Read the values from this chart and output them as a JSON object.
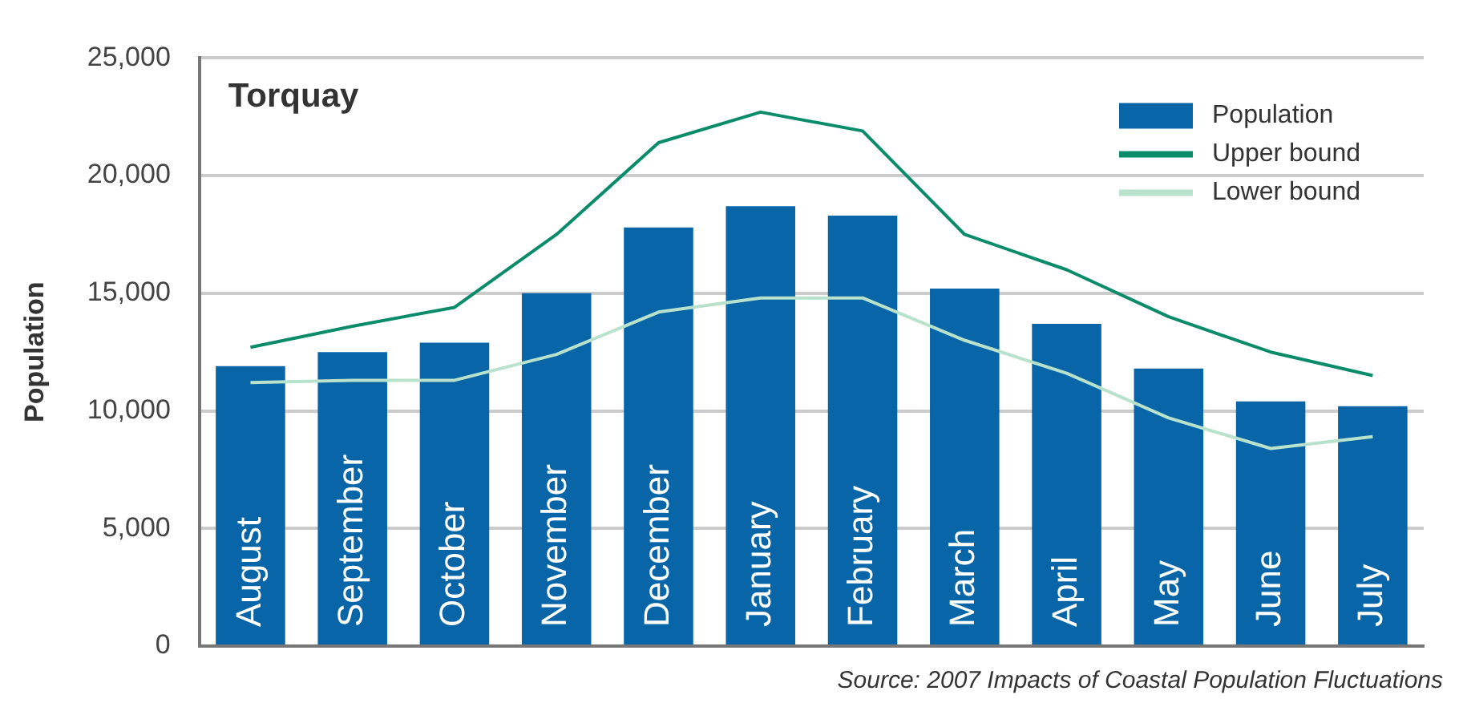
{
  "chart_data": {
    "type": "bar",
    "title": "Torquay",
    "ylabel": "Population",
    "categories": [
      "August",
      "September",
      "October",
      "November",
      "December",
      "January",
      "February",
      "March",
      "April",
      "May",
      "June",
      "July"
    ],
    "series": [
      {
        "name": "Population",
        "color": "#0866a8",
        "values": [
          11900,
          12500,
          12900,
          15000,
          17800,
          18700,
          18300,
          15200,
          13700,
          11800,
          10400,
          10200
        ]
      },
      {
        "name": "Upper bound",
        "type": "line",
        "color": "#0a8c6a",
        "values": [
          12700,
          13600,
          14400,
          17500,
          21400,
          22700,
          21900,
          17500,
          16000,
          14000,
          12500,
          11500
        ]
      },
      {
        "name": "Lower bound",
        "type": "line",
        "color": "#b8e2cc",
        "values": [
          11200,
          11300,
          11300,
          12400,
          14200,
          14800,
          14800,
          13000,
          11600,
          9700,
          8400,
          8900
        ]
      }
    ],
    "ylim": [
      0,
      25000
    ],
    "yticks": [
      {
        "value": 0,
        "label": "0"
      },
      {
        "value": 5000,
        "label": "5,000"
      },
      {
        "value": 10000,
        "label": "10,000"
      },
      {
        "value": 15000,
        "label": "15,000"
      },
      {
        "value": 20000,
        "label": "20,000"
      },
      {
        "value": 25000,
        "label": "25,000"
      }
    ],
    "grid": "y",
    "legend": "top right",
    "marker": "none",
    "line_style": "solid",
    "annotations": [
      "Source: 2007 Impacts of Coastal Population Fluctuations"
    ]
  }
}
